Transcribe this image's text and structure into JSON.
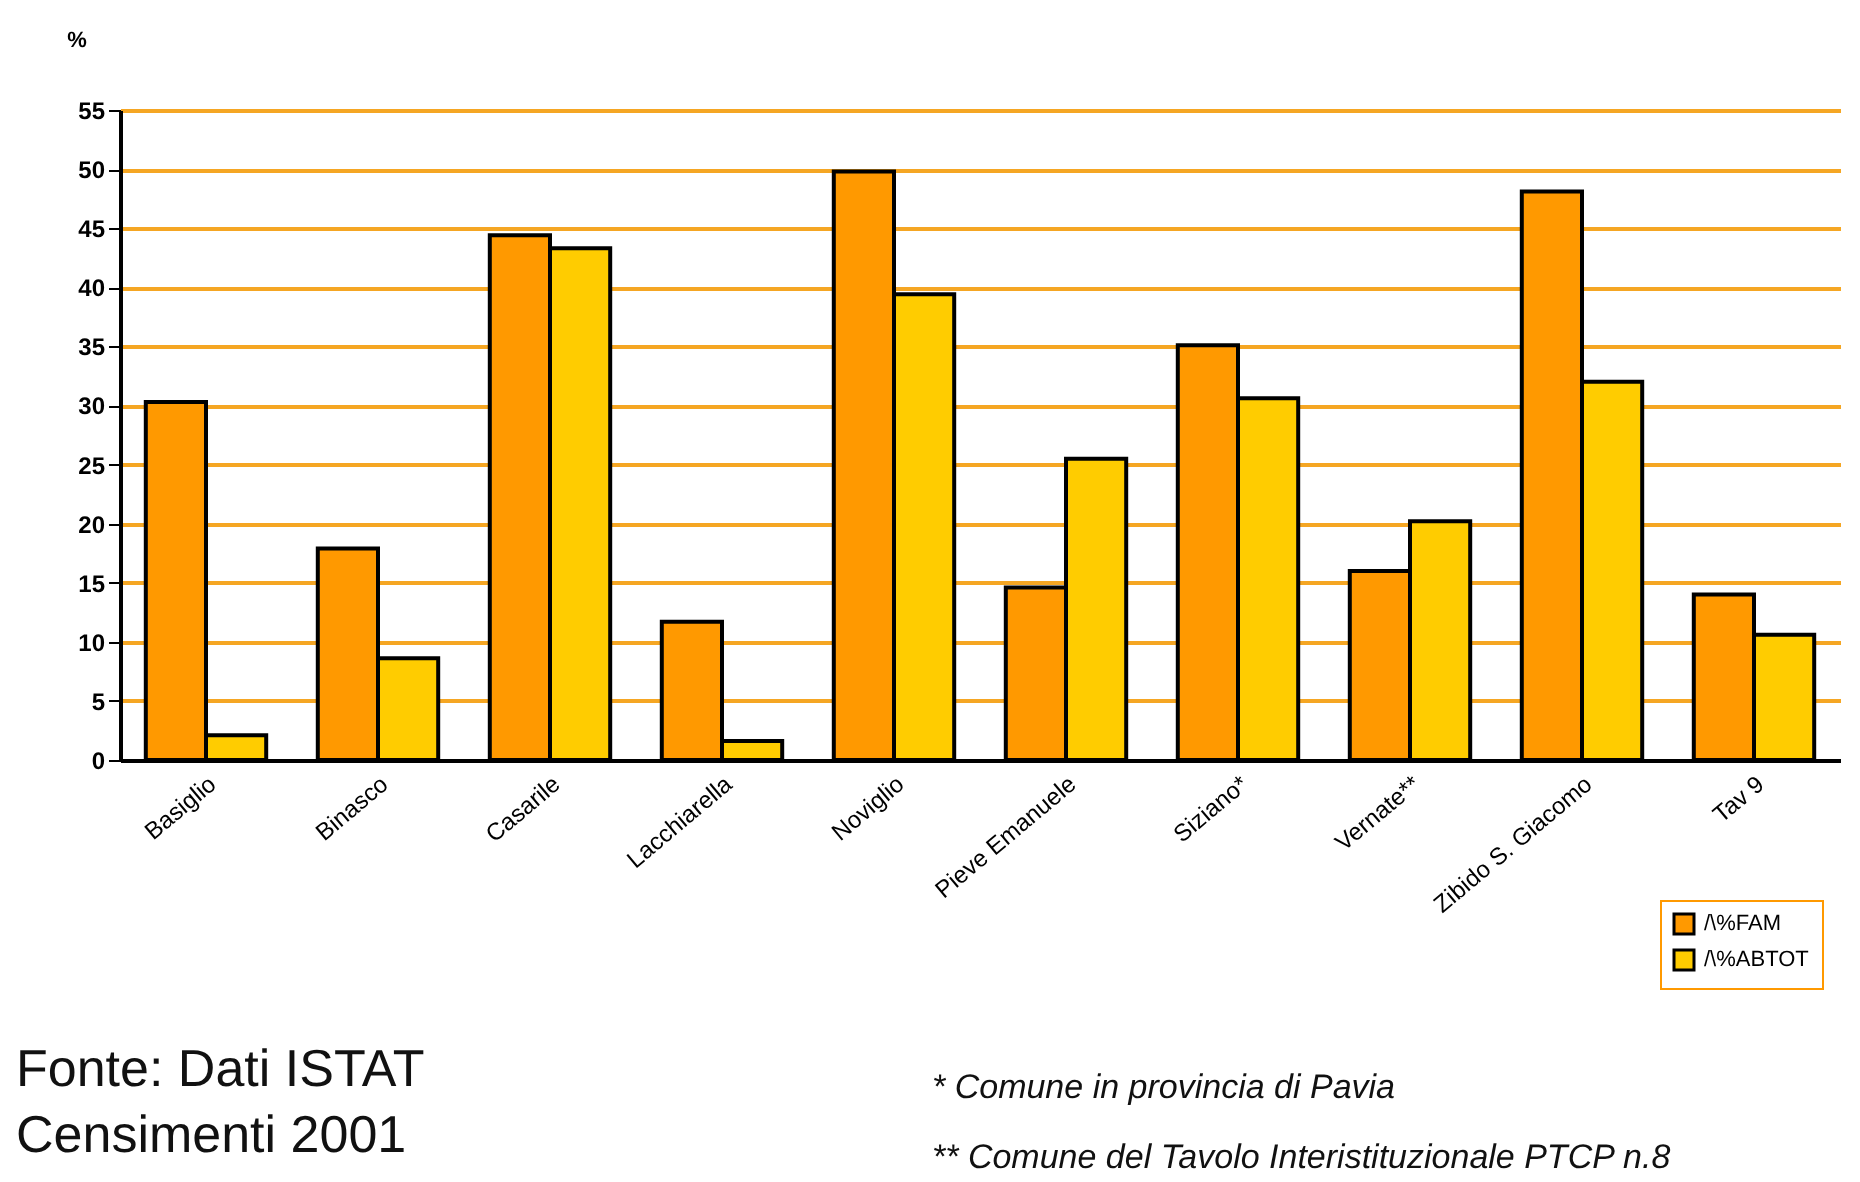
{
  "chart_data": {
    "type": "bar",
    "ylabel": "%",
    "categories": [
      "Basiglio",
      "Binasco",
      "Casarile",
      "Lacchiarella",
      "Noviglio",
      "Pieve Emanuele",
      "Siziano*",
      "Vernate**",
      "Zibido S. Giacomo",
      "Tav 9"
    ],
    "series": [
      {
        "name": "/\\%FAM",
        "color": "#ff9900",
        "values": [
          30.3,
          17.9,
          44.4,
          11.7,
          49.8,
          14.6,
          35.1,
          16.0,
          48.1,
          14.0
        ]
      },
      {
        "name": "/\\%ABTOT",
        "color": "#ffcc00",
        "values": [
          2.1,
          8.6,
          43.3,
          1.6,
          39.4,
          25.5,
          30.6,
          20.2,
          32.0,
          10.6
        ]
      }
    ],
    "ylim": [
      0,
      55
    ],
    "yticks": [
      0,
      5,
      10,
      15,
      20,
      25,
      30,
      35,
      40,
      45,
      50,
      55
    ],
    "grid": "y",
    "legend": "bottom right",
    "annotations": [
      "Fonte: Dati ISTAT\nCensimenti 2001",
      "* Comune in provincia di Pavia",
      "** Comune del Tavolo Interistituzionale PTCP n.8"
    ]
  }
}
